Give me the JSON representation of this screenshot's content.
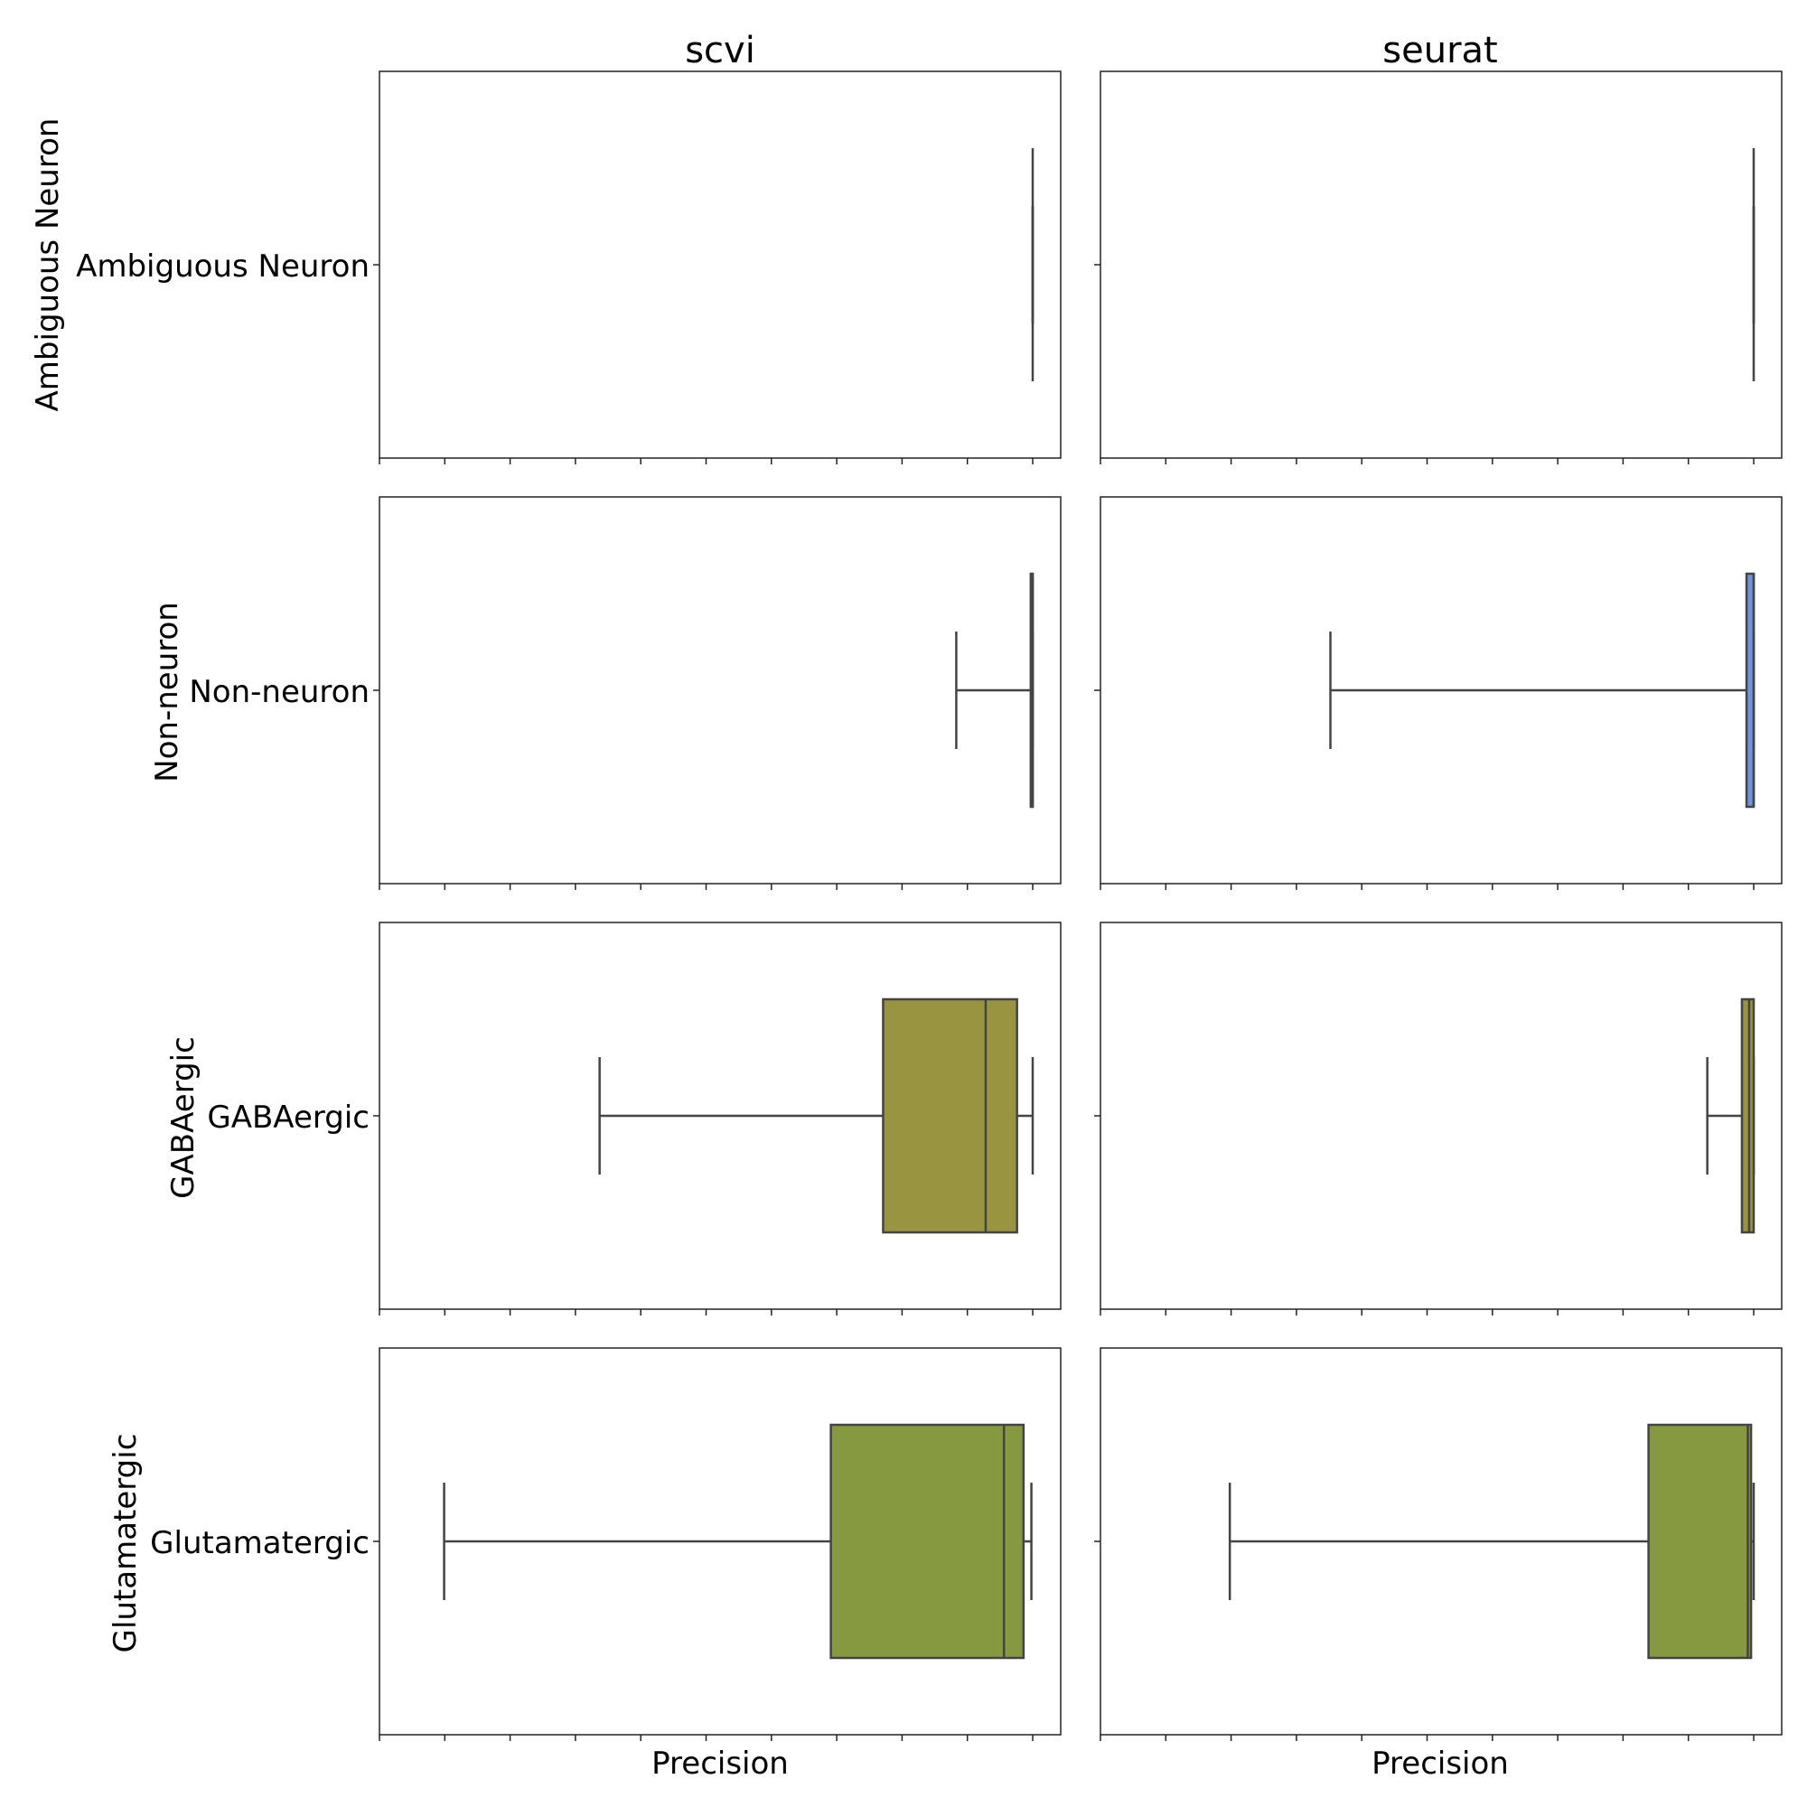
{
  "chart_data": {
    "type": "box",
    "columns": [
      "scvi",
      "seurat"
    ],
    "rows": [
      "Ambiguous Neuron",
      "Non-neuron",
      "GABAergic",
      "Glutamatergic"
    ],
    "xlabel": "Precision",
    "xlim": [
      0,
      10.5
    ],
    "x_tick_positions": [
      0,
      1,
      2,
      3,
      4,
      5,
      6,
      7,
      8,
      9,
      10
    ],
    "x_tick_labels_shown": false,
    "grid": false,
    "colors": {
      "Ambiguous Neuron": "#3a6fd6",
      "Non-neuron": "#6f93dc",
      "GABAergic": "#98943f",
      "Glutamatergic": "#879940",
      "line": "#444444"
    },
    "panels": [
      {
        "column": "scvi",
        "row": "Ambiguous Neuron",
        "whislo": 10,
        "q1": 10,
        "med": 10,
        "q3": 10,
        "whishi": 10
      },
      {
        "column": "seurat",
        "row": "Ambiguous Neuron",
        "whislo": 10,
        "q1": 10,
        "med": 10,
        "q3": 10,
        "whishi": 10
      },
      {
        "column": "scvi",
        "row": "Non-neuron",
        "whislo": 8.83,
        "q1": 9.97,
        "med": 10,
        "q3": 10,
        "whishi": 10
      },
      {
        "column": "seurat",
        "row": "Non-neuron",
        "whislo": 3.52,
        "q1": 9.89,
        "med": 10,
        "q3": 10,
        "whishi": 10
      },
      {
        "column": "scvi",
        "row": "GABAergic",
        "whislo": 3.37,
        "q1": 7.71,
        "med": 9.28,
        "q3": 9.76,
        "whishi": 10
      },
      {
        "column": "seurat",
        "row": "GABAergic",
        "whislo": 9.29,
        "q1": 9.82,
        "med": 9.93,
        "q3": 10,
        "whishi": 10
      },
      {
        "column": "scvi",
        "row": "Glutamatergic",
        "whislo": 0.99,
        "q1": 6.91,
        "med": 9.56,
        "q3": 9.86,
        "whishi": 9.98
      },
      {
        "column": "seurat",
        "row": "Glutamatergic",
        "whislo": 1.98,
        "q1": 8.39,
        "med": 9.91,
        "q3": 9.96,
        "whishi": 10
      }
    ]
  }
}
